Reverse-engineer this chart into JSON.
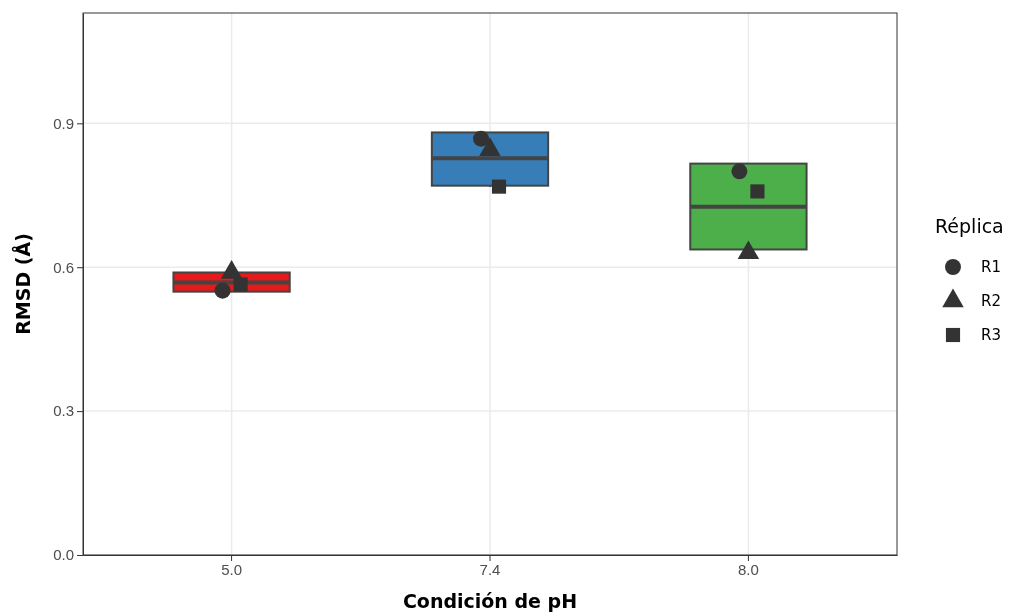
{
  "chart_data": {
    "type": "box",
    "xlabel": "Condición de pH",
    "ylabel": "RMSD (Å)",
    "legend_title": "Réplica",
    "categories": [
      "5.0",
      "7.4",
      "8.0"
    ],
    "colors": [
      "#e41a1c",
      "#377eb8",
      "#4daf4a"
    ],
    "boxes": [
      {
        "low": 0.549,
        "q1": 0.549,
        "median": 0.568,
        "q3": 0.589,
        "high": 0.589
      },
      {
        "low": 0.768,
        "q1": 0.77,
        "median": 0.827,
        "q3": 0.881,
        "high": 0.881
      },
      {
        "low": 0.63,
        "q1": 0.637,
        "median": 0.726,
        "q3": 0.816,
        "high": 0.816
      }
    ],
    "series": [
      {
        "type": "scatter",
        "name": "R1",
        "color": "#333333",
        "marker": "circle",
        "x": [
          "5.0",
          "7.4",
          "8.0"
        ],
        "values": [
          0.551,
          0.868,
          0.8
        ]
      },
      {
        "type": "scatter",
        "name": "R2",
        "color": "#333333",
        "marker": "triangle",
        "x": [
          "5.0",
          "7.4",
          "8.0"
        ],
        "values": [
          0.589,
          0.845,
          0.63
        ]
      },
      {
        "type": "scatter",
        "name": "R3",
        "color": "#333333",
        "marker": "square",
        "x": [
          "5.0",
          "7.4",
          "8.0"
        ],
        "values": [
          0.564,
          0.768,
          0.758
        ]
      }
    ],
    "ylim": [
      0,
      1.13
    ],
    "yticks": [
      {
        "value": 0,
        "label": "0.0"
      },
      0.3,
      0.6,
      0.9
    ],
    "grid": true,
    "legend": "right"
  }
}
